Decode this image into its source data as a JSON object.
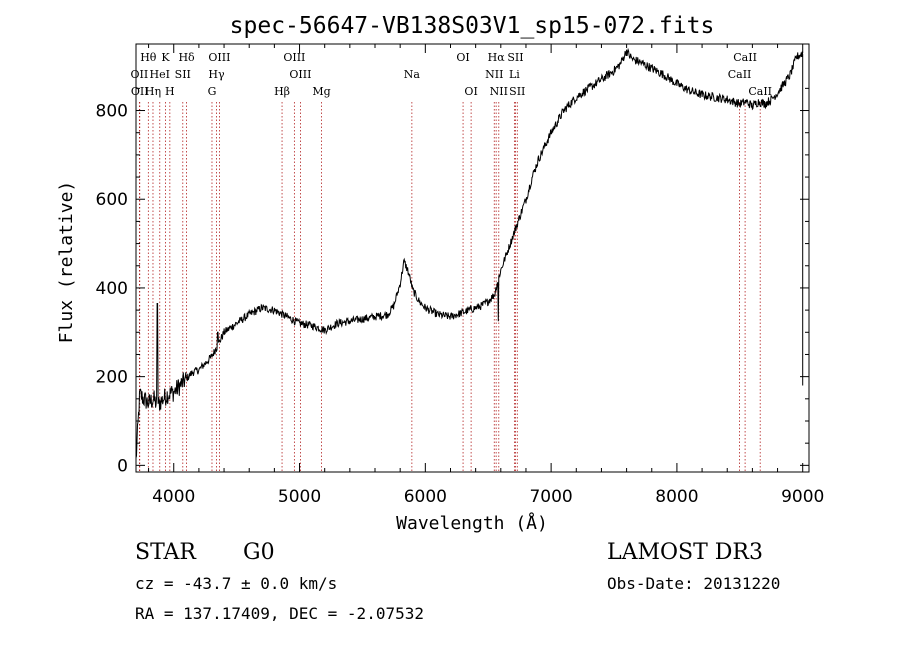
{
  "chart_data": {
    "type": "line",
    "title": "spec-56647-VB138S03V1_sp15-072.fits",
    "xlabel": "Wavelength (Å)",
    "ylabel": "Flux (relative)",
    "xlim": [
      3700,
      9050
    ],
    "ylim": [
      -15,
      950
    ],
    "xticks": [
      4000,
      5000,
      6000,
      7000,
      8000,
      9000
    ],
    "yticks": [
      0,
      200,
      400,
      600,
      800
    ],
    "spectrum_anchors": {
      "x": [
        3700,
        3730,
        3760,
        3800,
        3840,
        3870,
        3900,
        3950,
        4000,
        4050,
        4100,
        4150,
        4200,
        4250,
        4300,
        4350,
        4400,
        4500,
        4600,
        4700,
        4800,
        4900,
        5000,
        5100,
        5200,
        5300,
        5400,
        5500,
        5600,
        5700,
        5750,
        5800,
        5830,
        5860,
        5880,
        5900,
        5950,
        6000,
        6100,
        6200,
        6300,
        6400,
        6450,
        6500,
        6550,
        6570,
        6600,
        6650,
        6700,
        6750,
        6800,
        6850,
        6900,
        6950,
        7000,
        7050,
        7100,
        7200,
        7300,
        7400,
        7500,
        7550,
        7600,
        7620,
        7650,
        7700,
        7800,
        7900,
        8000,
        8100,
        8200,
        8300,
        8400,
        8450,
        8500,
        8550,
        8600,
        8650,
        8700,
        8750,
        8800,
        8850,
        8900,
        8950,
        9000
      ],
      "y": [
        10,
        160,
        150,
        140,
        150,
        135,
        145,
        160,
        165,
        180,
        195,
        210,
        215,
        230,
        245,
        270,
        300,
        320,
        340,
        355,
        350,
        335,
        320,
        315,
        305,
        320,
        325,
        330,
        335,
        340,
        360,
        410,
        460,
        440,
        420,
        395,
        370,
        355,
        340,
        335,
        345,
        355,
        360,
        370,
        385,
        410,
        440,
        480,
        520,
        560,
        600,
        650,
        690,
        720,
        750,
        775,
        800,
        830,
        850,
        870,
        890,
        905,
        935,
        925,
        915,
        910,
        895,
        880,
        860,
        845,
        835,
        830,
        825,
        820,
        815,
        820,
        810,
        820,
        815,
        825,
        840,
        860,
        880,
        920,
        930
      ],
      "spikes": [
        {
          "x": 3870,
          "y": 365
        },
        {
          "x": 4350,
          "y": 300
        },
        {
          "x": 6580,
          "y": 325
        }
      ]
    },
    "lines": [
      {
        "label": "Hθ",
        "wavelength": 3798,
        "row": 0
      },
      {
        "label": "OII",
        "wavelength": 3727,
        "row": 1
      },
      {
        "label": "OII",
        "wavelength": 3730,
        "row": 2
      },
      {
        "label": "Hη",
        "wavelength": 3835,
        "row": 2
      },
      {
        "label": "K",
        "wavelength": 3934,
        "row": 0
      },
      {
        "label": "HeI",
        "wavelength": 3889,
        "row": 1
      },
      {
        "label": "H",
        "wavelength": 3969,
        "row": 2
      },
      {
        "label": "SII",
        "wavelength": 4072,
        "row": 1
      },
      {
        "label": "Hδ",
        "wavelength": 4102,
        "row": 0
      },
      {
        "label": "OIII",
        "wavelength": 4363,
        "row": 0
      },
      {
        "label": "Hγ",
        "wavelength": 4340,
        "row": 1
      },
      {
        "label": "G",
        "wavelength": 4304,
        "row": 2
      },
      {
        "label": "Hβ",
        "wavelength": 4861,
        "row": 2
      },
      {
        "label": "OIII",
        "wavelength": 4959,
        "row": 0
      },
      {
        "label": "OIII",
        "wavelength": 5007,
        "row": 1
      },
      {
        "label": "Mg",
        "wavelength": 5175,
        "row": 2
      },
      {
        "label": "Na",
        "wavelength": 5893,
        "row": 1
      },
      {
        "label": "OI",
        "wavelength": 6300,
        "row": 0
      },
      {
        "label": "OI",
        "wavelength": 6364,
        "row": 2
      },
      {
        "label": "Hα",
        "wavelength": 6563,
        "row": 0
      },
      {
        "label": "NII",
        "wavelength": 6548,
        "row": 1
      },
      {
        "label": "NII",
        "wavelength": 6584,
        "row": 2
      },
      {
        "label": "SII",
        "wavelength": 6717,
        "row": 0
      },
      {
        "label": "Li",
        "wavelength": 6708,
        "row": 1
      },
      {
        "label": "SII",
        "wavelength": 6731,
        "row": 2
      },
      {
        "label": "CaII",
        "wavelength": 8542,
        "row": 0
      },
      {
        "label": "CaII",
        "wavelength": 8498,
        "row": 1
      },
      {
        "label": "CaII",
        "wavelength": 8662,
        "row": 2
      }
    ],
    "line_color": "#000000",
    "marker_color": "#b22222"
  },
  "info": {
    "class": "STAR",
    "subclass": "G0",
    "survey": "LAMOST DR3",
    "cz": "cz = -43.7 ± 0.0 km/s",
    "obs_date": "Obs-Date: 20131220",
    "radec": "RA = 137.17409, DEC =  -2.07532"
  }
}
